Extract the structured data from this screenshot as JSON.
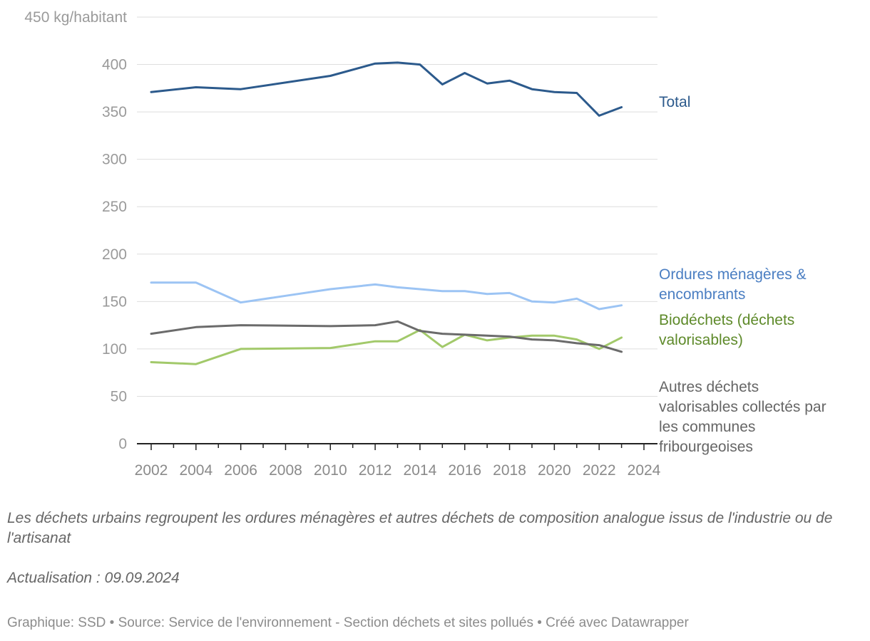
{
  "chart_data": {
    "type": "line",
    "ylabel": "kg/habitant",
    "y_unit_label": "450 kg/habitant",
    "ylim": [
      0,
      450
    ],
    "y_ticks": [
      0,
      50,
      100,
      150,
      200,
      250,
      300,
      350,
      400
    ],
    "xlim": [
      2001.5,
      2025
    ],
    "x_ticks": [
      2002,
      2004,
      2006,
      2008,
      2010,
      2012,
      2014,
      2016,
      2018,
      2020,
      2022,
      2024
    ],
    "x_ticks_minor": [
      2003,
      2005,
      2007,
      2009,
      2011,
      2013,
      2015,
      2017,
      2019,
      2021,
      2023
    ],
    "grid": true,
    "legend": "direct labels right",
    "series": [
      {
        "name": "Total",
        "label_lines": [
          "Total"
        ],
        "color": "#2c5a8c",
        "label_color": "#2c5a8c",
        "x": [
          2002,
          2004,
          2006,
          2010,
          2012,
          2013,
          2014,
          2015,
          2016,
          2017,
          2018,
          2019,
          2020,
          2021,
          2022,
          2023
        ],
        "values": [
          371,
          376,
          374,
          388,
          401,
          402,
          400,
          379,
          391,
          380,
          383,
          374,
          371,
          370,
          346,
          355
        ]
      },
      {
        "name": "Ordures ménagères & encombrants",
        "label_lines": [
          "Ordures ménagères &",
          "encombrants"
        ],
        "color": "#9cc4f4",
        "label_color": "#4a7ec2",
        "x": [
          2002,
          2004,
          2006,
          2008,
          2010,
          2012,
          2013,
          2014,
          2015,
          2016,
          2017,
          2018,
          2019,
          2020,
          2021,
          2022,
          2023
        ],
        "values": [
          170,
          170,
          149,
          156,
          163,
          168,
          165,
          163,
          161,
          161,
          158,
          159,
          150,
          149,
          153,
          142,
          146
        ]
      },
      {
        "name": "Biodéchets (déchets valorisables)",
        "label_lines": [
          "Biodéchets (déchets",
          "valorisables)"
        ],
        "color": "#a2c96a",
        "label_color": "#5e8a2a",
        "x": [
          2002,
          2004,
          2006,
          2010,
          2012,
          2013,
          2014,
          2015,
          2016,
          2017,
          2018,
          2019,
          2020,
          2021,
          2022,
          2023
        ],
        "values": [
          86,
          84,
          100,
          101,
          108,
          108,
          120,
          102,
          115,
          109,
          112,
          114,
          114,
          110,
          100,
          112
        ]
      },
      {
        "name": "Autres déchets valorisables collectés par les communes fribourgeoises",
        "label_lines": [
          "Autres déchets",
          "valorisables collectés par",
          "les communes",
          "fribourgeoises"
        ],
        "color": "#6b6b6b",
        "label_color": "#666666",
        "x": [
          2002,
          2004,
          2006,
          2010,
          2012,
          2013,
          2014,
          2015,
          2016,
          2017,
          2018,
          2019,
          2020,
          2021,
          2022,
          2023
        ],
        "values": [
          116,
          123,
          125,
          124,
          125,
          129,
          119,
          116,
          115,
          114,
          113,
          110,
          109,
          106,
          104,
          97
        ]
      }
    ]
  },
  "notes": {
    "description": "Les déchets urbains regroupent les ordures ménagères et autres déchets de composition analogue issus de l'industrie ou de l'artisanat",
    "update": "Actualisation : 09.09.2024"
  },
  "footer": {
    "text": "Graphique: SSD • Source: Service de l'environnement - Section déchets et sites pollués • Créé avec Datawrapper"
  }
}
